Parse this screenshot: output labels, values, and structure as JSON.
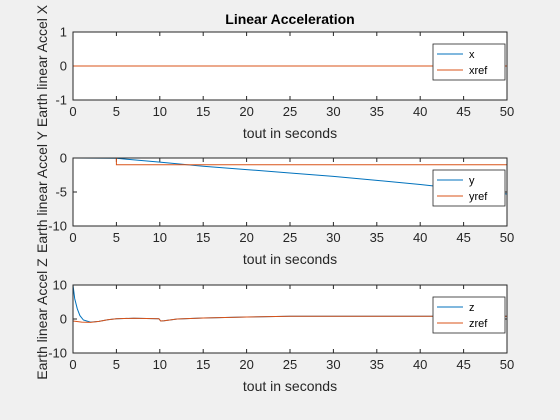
{
  "chart_data": [
    {
      "type": "line",
      "title": "Linear Acceleration",
      "xlabel": "tout in seconds",
      "ylabel": "Earth linear Accel X",
      "xlim": [
        0,
        50
      ],
      "ylim": [
        -1,
        1
      ],
      "xticks": [
        "0",
        "5",
        "10",
        "15",
        "20",
        "25",
        "30",
        "35",
        "40",
        "45",
        "50"
      ],
      "yticks": [
        "1",
        "0",
        "-1"
      ],
      "legend": "top-right",
      "grid": false,
      "series": [
        {
          "name": "x",
          "color": "#0072BD",
          "x": [
            0,
            50
          ],
          "y": [
            0,
            0
          ]
        },
        {
          "name": "xref",
          "color": "#D95319",
          "x": [
            0,
            50
          ],
          "y": [
            0,
            0
          ]
        }
      ]
    },
    {
      "type": "line",
      "title": "",
      "xlabel": "tout in seconds",
      "ylabel": "Earth linear Accel Y",
      "xlim": [
        0,
        50
      ],
      "ylim": [
        -10,
        0
      ],
      "xticks": [
        "0",
        "5",
        "10",
        "15",
        "20",
        "25",
        "30",
        "35",
        "40",
        "45",
        "50"
      ],
      "yticks": [
        "0",
        "-5",
        "-10"
      ],
      "legend": "top-right",
      "grid": false,
      "series": [
        {
          "name": "y",
          "color": "#0072BD",
          "x": [
            0,
            5,
            10,
            15,
            20,
            25,
            30,
            35,
            40,
            45,
            50
          ],
          "y": [
            0,
            -0.05,
            -0.6,
            -1.2,
            -1.7,
            -2.2,
            -2.7,
            -3.3,
            -3.9,
            -4.6,
            -5.3
          ]
        },
        {
          "name": "yref",
          "color": "#D95319",
          "x": [
            0,
            5,
            5,
            50
          ],
          "y": [
            0,
            0,
            -1,
            -1
          ]
        }
      ]
    },
    {
      "type": "line",
      "title": "",
      "xlabel": "tout in seconds",
      "ylabel": "Earth linear Accel Z",
      "xlim": [
        0,
        50
      ],
      "ylim": [
        -10,
        10
      ],
      "xticks": [
        "0",
        "5",
        "10",
        "15",
        "20",
        "25",
        "30",
        "35",
        "40",
        "45",
        "50"
      ],
      "yticks": [
        "10",
        "0",
        "-10"
      ],
      "legend": "top-right",
      "grid": false,
      "series": [
        {
          "name": "z",
          "color": "#0072BD",
          "x": [
            0,
            0.2,
            0.5,
            0.8,
            1.2,
            2,
            3,
            4,
            5,
            7,
            9.9,
            10.1,
            10.5,
            12,
            15,
            20,
            25,
            30,
            40,
            50
          ],
          "y": [
            10,
            6,
            3,
            1,
            -0.3,
            -0.9,
            -0.7,
            -0.2,
            0.1,
            0.2,
            0.1,
            -0.6,
            -0.5,
            0.0,
            0.3,
            0.6,
            0.8,
            0.8,
            0.8,
            0.8
          ]
        },
        {
          "name": "zref",
          "color": "#D95319",
          "x": [
            0,
            1,
            2,
            3,
            4,
            5,
            7,
            9.9,
            10.1,
            10.5,
            12,
            15,
            20,
            25,
            30,
            40,
            50
          ],
          "y": [
            -0.6,
            -0.9,
            -1.0,
            -0.7,
            -0.2,
            0.1,
            0.2,
            0.1,
            -0.6,
            -0.5,
            0.0,
            0.3,
            0.6,
            0.8,
            0.8,
            0.8,
            0.8
          ]
        }
      ]
    }
  ]
}
